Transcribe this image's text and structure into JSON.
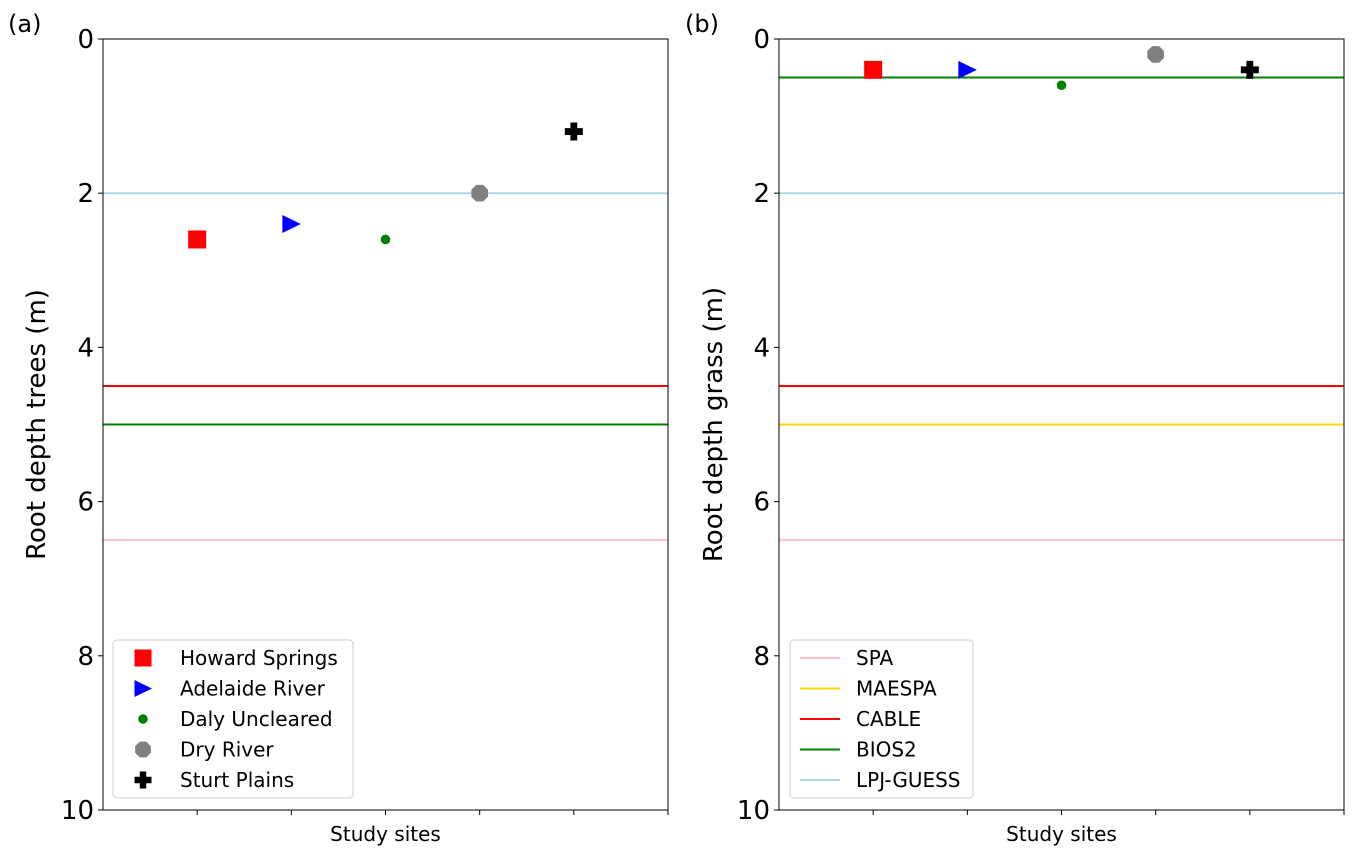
{
  "chart_data": [
    {
      "type": "scatter",
      "panel_label": "(a)",
      "xlabel": "Study sites",
      "ylabel": "Root depth trees (m)",
      "ylim": [
        0,
        10
      ],
      "y_inverted": true,
      "yticks": [
        "0",
        "2",
        "4",
        "6",
        "8",
        "10"
      ],
      "ytick_values": [
        0,
        2,
        4,
        6,
        8,
        10
      ],
      "x_tick_count": 6,
      "legend_position": "lower-left",
      "legend_kind": "markers",
      "sites": [
        {
          "name": "Howard Springs",
          "x": 1,
          "y": 2.6,
          "color": "#ff0000",
          "marker": "square"
        },
        {
          "name": "Adelaide River",
          "x": 2,
          "y": 2.4,
          "color": "#0000ff",
          "marker": "triangle-right"
        },
        {
          "name": "Daly Uncleared",
          "x": 3,
          "y": 2.6,
          "color": "#008000",
          "marker": "circle"
        },
        {
          "name": "Dry River",
          "x": 4,
          "y": 2.0,
          "color": "#808080",
          "marker": "octagon"
        },
        {
          "name": "Sturt Plains",
          "x": 5,
          "y": 1.2,
          "color": "#000000",
          "marker": "plus"
        }
      ],
      "models": [
        {
          "name": "SPA",
          "y": 6.5,
          "color": "#ffc0cb"
        },
        {
          "name": "CABLE",
          "y": 4.5,
          "color": "#ff0000"
        },
        {
          "name": "BIOS2",
          "y": 5.0,
          "color": "#008000"
        },
        {
          "name": "LPJ-GUESS",
          "y": 2.0,
          "color": "#add8e6"
        }
      ]
    },
    {
      "type": "scatter",
      "panel_label": "(b)",
      "xlabel": "Study sites",
      "ylabel": "Root depth grass (m)",
      "ylim": [
        0,
        10
      ],
      "y_inverted": true,
      "yticks": [
        "0",
        "2",
        "4",
        "6",
        "8",
        "10"
      ],
      "ytick_values": [
        0,
        2,
        4,
        6,
        8,
        10
      ],
      "x_tick_count": 6,
      "legend_position": "lower-left",
      "legend_kind": "lines",
      "sites": [
        {
          "name": "Howard Springs",
          "x": 1,
          "y": 0.4,
          "color": "#ff0000",
          "marker": "square"
        },
        {
          "name": "Adelaide River",
          "x": 2,
          "y": 0.4,
          "color": "#0000ff",
          "marker": "triangle-right"
        },
        {
          "name": "Daly Uncleared",
          "x": 3,
          "y": 0.6,
          "color": "#008000",
          "marker": "circle"
        },
        {
          "name": "Dry River",
          "x": 4,
          "y": 0.2,
          "color": "#808080",
          "marker": "octagon"
        },
        {
          "name": "Sturt Plains",
          "x": 5,
          "y": 0.4,
          "color": "#000000",
          "marker": "plus"
        }
      ],
      "models": [
        {
          "name": "SPA",
          "y": 6.5,
          "color": "#ffc0cb"
        },
        {
          "name": "MAESPA",
          "y": 5.0,
          "color": "#ffd700"
        },
        {
          "name": "CABLE",
          "y": 4.5,
          "color": "#ff0000"
        },
        {
          "name": "BIOS2",
          "y": 0.5,
          "color": "#008000"
        },
        {
          "name": "LPJ-GUESS",
          "y": 2.0,
          "color": "#add8e6"
        }
      ]
    }
  ]
}
